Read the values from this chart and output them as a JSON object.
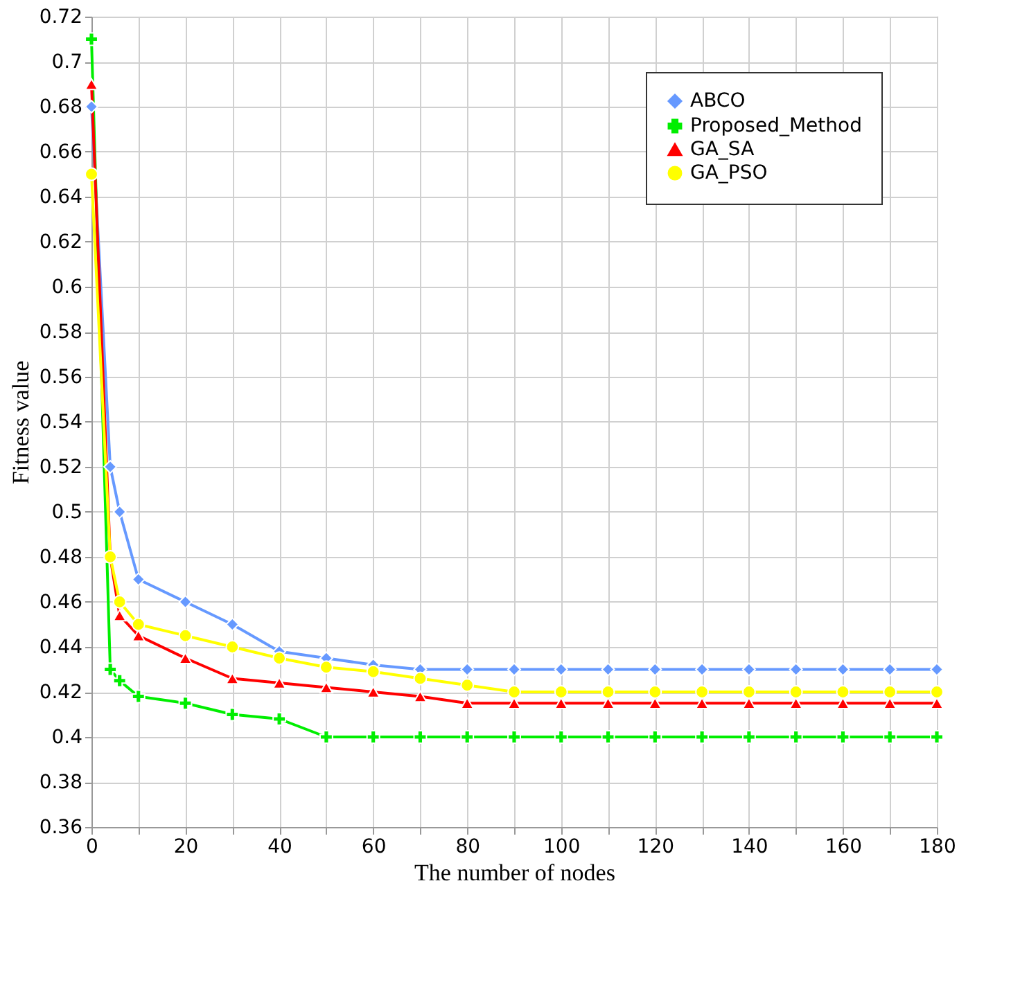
{
  "chart_data": {
    "type": "line",
    "xlabel": "The number of nodes",
    "ylabel": "Fitness value",
    "x": [
      0,
      4,
      6,
      10,
      20,
      30,
      40,
      50,
      60,
      70,
      80,
      90,
      100,
      110,
      120,
      130,
      140,
      150,
      160,
      170,
      180
    ],
    "series": [
      {
        "name": "ABCO",
        "color": "#6699ff",
        "marker": "diamond",
        "values": [
          0.68,
          0.52,
          0.5,
          0.47,
          0.46,
          0.45,
          0.438,
          0.435,
          0.432,
          0.43,
          0.43,
          0.43,
          0.43,
          0.43,
          0.43,
          0.43,
          0.43,
          0.43,
          0.43,
          0.43,
          0.43
        ]
      },
      {
        "name": "Proposed_Method",
        "color": "#00ee00",
        "marker": "cross",
        "values": [
          0.71,
          0.43,
          0.425,
          0.418,
          0.415,
          0.41,
          0.408,
          0.4,
          0.4,
          0.4,
          0.4,
          0.4,
          0.4,
          0.4,
          0.4,
          0.4,
          0.4,
          0.4,
          0.4,
          0.4,
          0.4
        ]
      },
      {
        "name": "GA_SA",
        "color": "#ff0000",
        "marker": "triangle",
        "values": [
          0.69,
          0.48,
          0.454,
          0.445,
          0.435,
          0.426,
          0.424,
          0.422,
          0.42,
          0.418,
          0.415,
          0.415,
          0.415,
          0.415,
          0.415,
          0.415,
          0.415,
          0.415,
          0.415,
          0.415,
          0.415
        ]
      },
      {
        "name": "GA_PSO",
        "color": "#ffff00",
        "marker": "circle",
        "values": [
          0.65,
          0.48,
          0.46,
          0.45,
          0.445,
          0.44,
          0.435,
          0.431,
          0.429,
          0.426,
          0.423,
          0.42,
          0.42,
          0.42,
          0.42,
          0.42,
          0.42,
          0.42,
          0.42,
          0.42,
          0.42
        ]
      }
    ],
    "xlim": [
      0,
      180
    ],
    "xticks": [
      0,
      {
        "value": 10,
        "label": null
      },
      20,
      {
        "value": 30,
        "label": null
      },
      40,
      {
        "value": 50,
        "label": null
      },
      60,
      {
        "value": 70,
        "label": null
      },
      80,
      {
        "value": 90,
        "label": null
      },
      100,
      {
        "value": 110,
        "label": null
      },
      120,
      {
        "value": 130,
        "label": null
      },
      140,
      {
        "value": 150,
        "label": null
      },
      160,
      {
        "value": 170,
        "label": null
      },
      180
    ],
    "ylim": [
      0.36,
      0.72
    ],
    "yticks": [
      0.36,
      0.38,
      0.4,
      0.42,
      0.44,
      0.46,
      0.48,
      0.5,
      0.52,
      0.54,
      0.56,
      0.58,
      0.6,
      0.62,
      0.64,
      0.66,
      0.68,
      0.7,
      0.72
    ],
    "grid": true,
    "legend": "top right",
    "line_style": "solid"
  }
}
